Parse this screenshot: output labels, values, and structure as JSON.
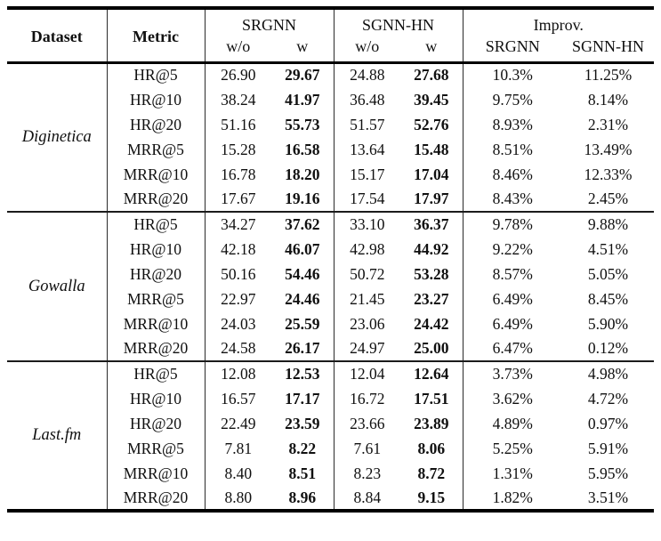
{
  "table": {
    "header": {
      "dataset": "Dataset",
      "metric": "Metric",
      "groups": [
        {
          "label": "SRGNN",
          "sub": [
            "w/o",
            "w"
          ]
        },
        {
          "label": "SGNN-HN",
          "sub": [
            "w/o",
            "w"
          ]
        },
        {
          "label": "Improv.",
          "sub": [
            "SRGNN",
            "SGNN-HN"
          ]
        }
      ]
    },
    "blocks": [
      {
        "dataset": "Diginetica",
        "rows": [
          {
            "metric": "HR@5",
            "srgnn_wo": "26.90",
            "srgnn_w": "29.67",
            "sgnnhn_wo": "24.88",
            "sgnnhn_w": "27.68",
            "impr_srgnn": "10.3%",
            "impr_sgnnhn": "11.25%"
          },
          {
            "metric": "HR@10",
            "srgnn_wo": "38.24",
            "srgnn_w": "41.97",
            "sgnnhn_wo": "36.48",
            "sgnnhn_w": "39.45",
            "impr_srgnn": "9.75%",
            "impr_sgnnhn": "8.14%"
          },
          {
            "metric": "HR@20",
            "srgnn_wo": "51.16",
            "srgnn_w": "55.73",
            "sgnnhn_wo": "51.57",
            "sgnnhn_w": "52.76",
            "impr_srgnn": "8.93%",
            "impr_sgnnhn": "2.31%"
          },
          {
            "metric": "MRR@5",
            "srgnn_wo": "15.28",
            "srgnn_w": "16.58",
            "sgnnhn_wo": "13.64",
            "sgnnhn_w": "15.48",
            "impr_srgnn": "8.51%",
            "impr_sgnnhn": "13.49%"
          },
          {
            "metric": "MRR@10",
            "srgnn_wo": "16.78",
            "srgnn_w": "18.20",
            "sgnnhn_wo": "15.17",
            "sgnnhn_w": "17.04",
            "impr_srgnn": "8.46%",
            "impr_sgnnhn": "12.33%"
          },
          {
            "metric": "MRR@20",
            "srgnn_wo": "17.67",
            "srgnn_w": "19.16",
            "sgnnhn_wo": "17.54",
            "sgnnhn_w": "17.97",
            "impr_srgnn": "8.43%",
            "impr_sgnnhn": "2.45%"
          }
        ]
      },
      {
        "dataset": "Gowalla",
        "rows": [
          {
            "metric": "HR@5",
            "srgnn_wo": "34.27",
            "srgnn_w": "37.62",
            "sgnnhn_wo": "33.10",
            "sgnnhn_w": "36.37",
            "impr_srgnn": "9.78%",
            "impr_sgnnhn": "9.88%"
          },
          {
            "metric": "HR@10",
            "srgnn_wo": "42.18",
            "srgnn_w": "46.07",
            "sgnnhn_wo": "42.98",
            "sgnnhn_w": "44.92",
            "impr_srgnn": "9.22%",
            "impr_sgnnhn": "4.51%"
          },
          {
            "metric": "HR@20",
            "srgnn_wo": "50.16",
            "srgnn_w": "54.46",
            "sgnnhn_wo": "50.72",
            "sgnnhn_w": "53.28",
            "impr_srgnn": "8.57%",
            "impr_sgnnhn": "5.05%"
          },
          {
            "metric": "MRR@5",
            "srgnn_wo": "22.97",
            "srgnn_w": "24.46",
            "sgnnhn_wo": "21.45",
            "sgnnhn_w": "23.27",
            "impr_srgnn": "6.49%",
            "impr_sgnnhn": "8.45%"
          },
          {
            "metric": "MRR@10",
            "srgnn_wo": "24.03",
            "srgnn_w": "25.59",
            "sgnnhn_wo": "23.06",
            "sgnnhn_w": "24.42",
            "impr_srgnn": "6.49%",
            "impr_sgnnhn": "5.90%"
          },
          {
            "metric": "MRR@20",
            "srgnn_wo": "24.58",
            "srgnn_w": "26.17",
            "sgnnhn_wo": "24.97",
            "sgnnhn_w": "25.00",
            "impr_srgnn": "6.47%",
            "impr_sgnnhn": "0.12%"
          }
        ]
      },
      {
        "dataset": "Last.fm",
        "rows": [
          {
            "metric": "HR@5",
            "srgnn_wo": "12.08",
            "srgnn_w": "12.53",
            "sgnnhn_wo": "12.04",
            "sgnnhn_w": "12.64",
            "impr_srgnn": "3.73%",
            "impr_sgnnhn": "4.98%"
          },
          {
            "metric": "HR@10",
            "srgnn_wo": "16.57",
            "srgnn_w": "17.17",
            "sgnnhn_wo": "16.72",
            "sgnnhn_w": "17.51",
            "impr_srgnn": "3.62%",
            "impr_sgnnhn": "4.72%"
          },
          {
            "metric": "HR@20",
            "srgnn_wo": "22.49",
            "srgnn_w": "23.59",
            "sgnnhn_wo": "23.66",
            "sgnnhn_w": "23.89",
            "impr_srgnn": "4.89%",
            "impr_sgnnhn": "0.97%"
          },
          {
            "metric": "MRR@5",
            "srgnn_wo": "7.81",
            "srgnn_w": "8.22",
            "sgnnhn_wo": "7.61",
            "sgnnhn_w": "8.06",
            "impr_srgnn": "5.25%",
            "impr_sgnnhn": "5.91%"
          },
          {
            "metric": "MRR@10",
            "srgnn_wo": "8.40",
            "srgnn_w": "8.51",
            "sgnnhn_wo": "8.23",
            "sgnnhn_w": "8.72",
            "impr_srgnn": "1.31%",
            "impr_sgnnhn": "5.95%"
          },
          {
            "metric": "MRR@20",
            "srgnn_wo": "8.80",
            "srgnn_w": "8.96",
            "sgnnhn_wo": "8.84",
            "sgnnhn_w": "9.15",
            "impr_srgnn": "1.82%",
            "impr_sgnnhn": "3.51%"
          }
        ]
      }
    ]
  }
}
